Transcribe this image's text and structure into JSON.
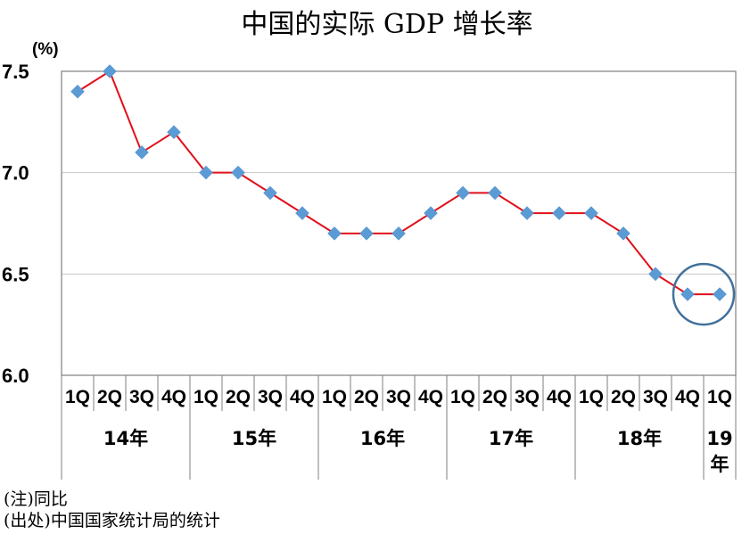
{
  "chart_data": {
    "type": "line",
    "title": "中国的实际 GDP 增长率",
    "unit_label": "(%)",
    "ylim": [
      6.0,
      7.5
    ],
    "yticks": [
      "6.0",
      "6.5",
      "7.0",
      "7.5"
    ],
    "grid": true,
    "categories": [
      "1Q",
      "2Q",
      "3Q",
      "4Q",
      "1Q",
      "2Q",
      "3Q",
      "4Q",
      "1Q",
      "2Q",
      "3Q",
      "4Q",
      "1Q",
      "2Q",
      "3Q",
      "4Q",
      "1Q",
      "2Q",
      "3Q",
      "4Q",
      "1Q"
    ],
    "year_groups": [
      {
        "label": "14年",
        "count": 4
      },
      {
        "label": "15年",
        "count": 4
      },
      {
        "label": "16年",
        "count": 4
      },
      {
        "label": "17年",
        "count": 4
      },
      {
        "label": "18年",
        "count": 4
      },
      {
        "label": "19年",
        "count": 1
      }
    ],
    "series": [
      {
        "values": [
          7.4,
          7.5,
          7.1,
          7.2,
          7.0,
          7.0,
          6.9,
          6.8,
          6.7,
          6.7,
          6.7,
          6.8,
          6.9,
          6.9,
          6.8,
          6.8,
          6.8,
          6.7,
          6.5,
          6.4,
          6.4
        ]
      }
    ],
    "highlight": {
      "from_index": 19,
      "to_index": 20
    },
    "colors": {
      "line": "#e0101a",
      "marker": "#5b9bd5",
      "highlight_circle": "#41719c",
      "grid": "#c8c8c8",
      "axis": "#7f7f7f"
    }
  },
  "notes": {
    "note1": "(注)同比",
    "note2": "(出处)中国国家统计局的统计"
  }
}
